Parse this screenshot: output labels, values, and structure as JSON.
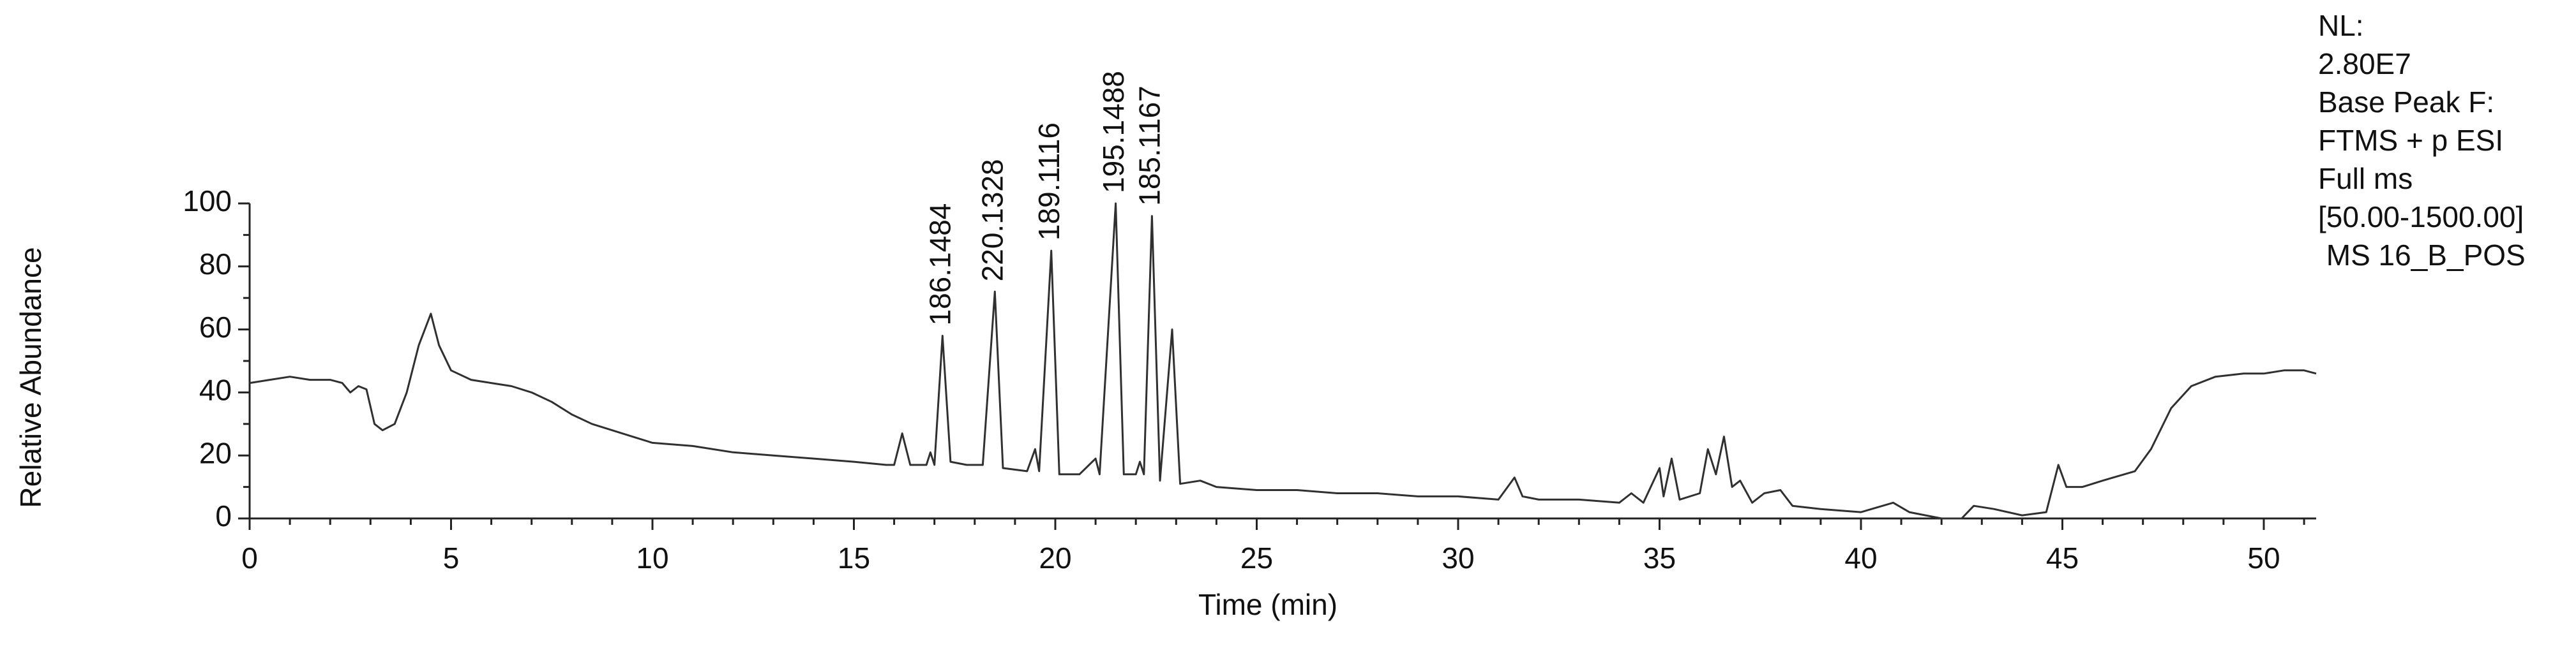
{
  "chart_data": {
    "type": "line",
    "x_label": "Time (min)",
    "y_label": "Relative Abundance",
    "color": "#303030",
    "xlim": [
      0,
      51.3
    ],
    "ylim": [
      0,
      100
    ],
    "xticks": [
      0,
      5,
      10,
      15,
      20,
      25,
      30,
      35,
      40,
      45,
      50
    ],
    "yticks": [
      0,
      20,
      40,
      60,
      80,
      100
    ],
    "info_lines": [
      "NL:",
      "2.80E7",
      "Base Peak F:",
      "FTMS + p ESI",
      "Full ms",
      "[50.00-1500.00]",
      " MS 16_B_POS"
    ],
    "annotations": [
      {
        "text": "186.1484",
        "x": 17.2,
        "y": 58
      },
      {
        "text": "220.1328",
        "x": 18.5,
        "y": 72
      },
      {
        "text": "189.1116",
        "x": 19.9,
        "y": 85
      },
      {
        "text": "195.1488",
        "x": 21.5,
        "y": 100
      },
      {
        "text": "185.1167",
        "x": 22.4,
        "y": 96
      }
    ],
    "x": [
      0,
      0.5,
      1,
      1.5,
      2,
      2.3,
      2.5,
      2.7,
      2.9,
      3.1,
      3.3,
      3.6,
      3.9,
      4.2,
      4.5,
      4.7,
      5,
      5.5,
      6,
      6.5,
      7,
      7.5,
      8,
      8.5,
      9,
      9.5,
      10,
      11,
      12,
      13,
      14,
      15,
      15.8,
      16,
      16.2,
      16.4,
      16.8,
      16.9,
      17,
      17.2,
      17.4,
      17.8,
      18.2,
      18.5,
      18.7,
      19.3,
      19.5,
      19.6,
      19.9,
      20.1,
      20.6,
      21,
      21.1,
      21.5,
      21.7,
      22,
      22.1,
      22.2,
      22.4,
      22.6,
      22.9,
      23.1,
      23.6,
      24,
      25,
      26,
      27,
      28,
      29,
      30,
      31,
      31.4,
      31.6,
      32,
      33,
      34,
      34.3,
      34.6,
      35,
      35.1,
      35.3,
      35.5,
      36,
      36.2,
      36.4,
      36.6,
      36.8,
      37,
      37.3,
      37.6,
      38,
      38.3,
      39,
      40,
      40.8,
      41.2,
      42,
      42.5,
      42.8,
      43.3,
      44,
      44.6,
      44.9,
      45.1,
      45.5,
      46,
      46.8,
      47.2,
      47.7,
      48.2,
      48.8,
      49.5,
      50,
      50.5,
      51,
      51.3
    ],
    "values": [
      43,
      44,
      45,
      44,
      44,
      43,
      40,
      42,
      41,
      30,
      28,
      30,
      40,
      55,
      65,
      55,
      47,
      44,
      43,
      42,
      40,
      37,
      33,
      30,
      28,
      26,
      24,
      23,
      21,
      20,
      19,
      18,
      17,
      17,
      27,
      17,
      17,
      21,
      17,
      58,
      18,
      17,
      17,
      72,
      16,
      15,
      22,
      15,
      85,
      14,
      14,
      19,
      14,
      100,
      14,
      14,
      18,
      14,
      96,
      12,
      60,
      11,
      12,
      10,
      9,
      9,
      8,
      8,
      7,
      7,
      6,
      13,
      7,
      6,
      6,
      5,
      8,
      5,
      16,
      7,
      19,
      6,
      8,
      22,
      14,
      26,
      10,
      12,
      5,
      8,
      9,
      4,
      3,
      2,
      5,
      2,
      0,
      0,
      4,
      3,
      1,
      2,
      17,
      10,
      10,
      12,
      15,
      22,
      35,
      42,
      45,
      46,
      46,
      47,
      47,
      46
    ]
  }
}
